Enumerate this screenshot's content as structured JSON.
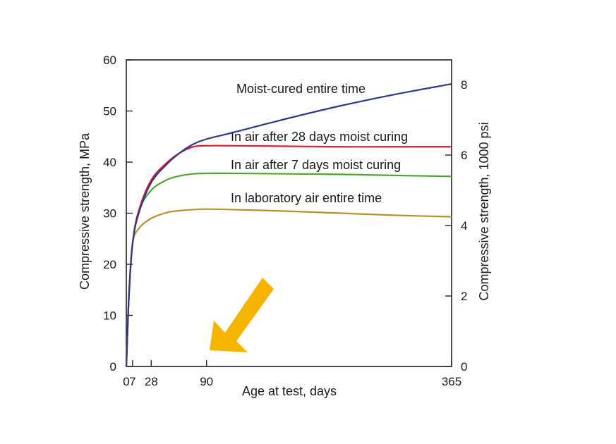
{
  "chart_data": {
    "type": "line",
    "xlabel": "Age at test, days",
    "ylabel": "Compressive strength, MPa",
    "y2label": "Compressive strength, 1000 psi",
    "xlim": [
      0,
      365
    ],
    "ylim": [
      0,
      60
    ],
    "y2lim": [
      0,
      8.7
    ],
    "x_ticks": [
      0,
      7,
      28,
      90,
      365
    ],
    "y_ticks": [
      0,
      10,
      20,
      30,
      40,
      50,
      60
    ],
    "y2_ticks": [
      0,
      2,
      4,
      6,
      8
    ],
    "grid": false,
    "series": [
      {
        "name": "Moist-cured entire time",
        "color": "#2b3a8c",
        "x": [
          0,
          3,
          7,
          14,
          28,
          45,
          60,
          75,
          90,
          120,
          180,
          240,
          300,
          365
        ],
        "y": [
          0,
          14,
          24,
          30,
          36,
          39.5,
          41.8,
          43.5,
          44.5,
          45.8,
          48.5,
          51,
          53.2,
          55.3
        ]
      },
      {
        "name": "In air after 28 days moist curing",
        "color": "#e01e2d",
        "x": [
          0,
          3,
          7,
          14,
          28,
          45,
          60,
          75,
          90,
          120,
          180,
          240,
          300,
          365
        ],
        "y": [
          0,
          14,
          24,
          30.5,
          36.5,
          39.8,
          41.8,
          43,
          43.2,
          43.2,
          43.1,
          43,
          43,
          43
        ]
      },
      {
        "name": "In air after 7 days moist curing",
        "color": "#4aa832",
        "x": [
          0,
          3,
          7,
          14,
          28,
          45,
          60,
          75,
          90,
          120,
          180,
          240,
          300,
          365
        ],
        "y": [
          0,
          14,
          24,
          30.5,
          34.5,
          36.5,
          37.3,
          37.7,
          37.8,
          37.8,
          37.7,
          37.6,
          37.4,
          37.2
        ]
      },
      {
        "name": "In laboratory air entire time",
        "color": "#b5912a",
        "x": [
          0,
          3,
          7,
          14,
          28,
          45,
          60,
          75,
          90,
          120,
          180,
          240,
          300,
          365
        ],
        "y": [
          0,
          14,
          24,
          27,
          29,
          30.1,
          30.5,
          30.7,
          30.8,
          30.7,
          30.4,
          30,
          29.6,
          29.3
        ]
      }
    ]
  },
  "annotation": {
    "arrow_color": "#f4b400",
    "arrow_icon": "arrow-down-left-icon"
  }
}
